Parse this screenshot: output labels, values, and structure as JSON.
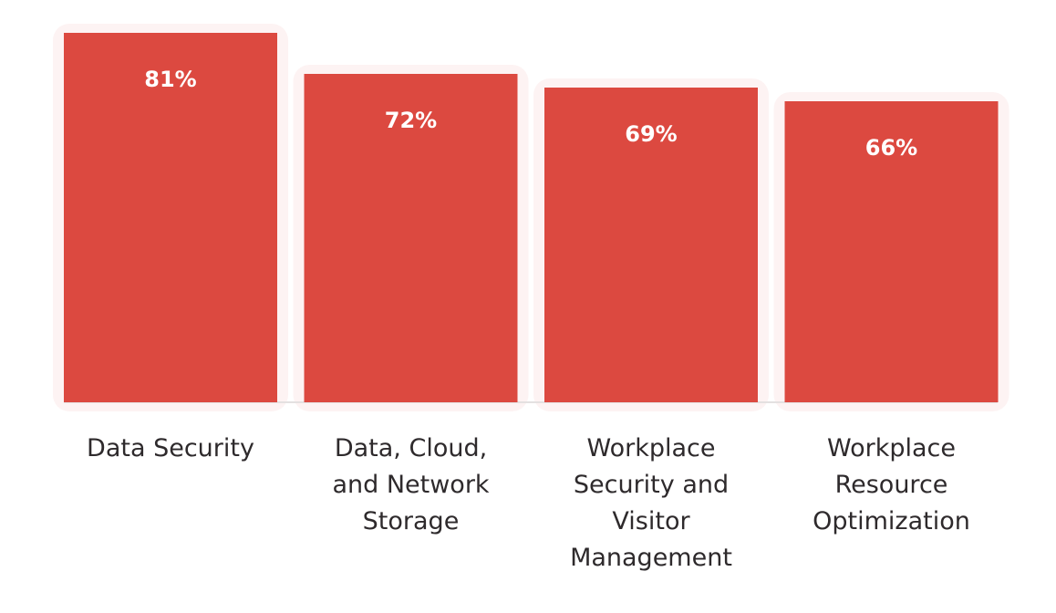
{
  "colors": {
    "bar": "#dc4940",
    "value_text": "#ffffff",
    "category_text": "#2e2a2c",
    "background": "#ffffff"
  },
  "chart_data": {
    "type": "bar",
    "categories": [
      "Data Security",
      "Data, Cloud, and Network Storage",
      "Workplace Security and Visitor Management",
      "Workplace Resource Optimization"
    ],
    "category_lines": [
      [
        "Data Security"
      ],
      [
        "Data, Cloud,",
        "and Network",
        "Storage"
      ],
      [
        "Workplace",
        "Security and",
        "Visitor",
        "Management"
      ],
      [
        "Workplace",
        "Resource",
        "Optimization"
      ]
    ],
    "values": [
      81,
      72,
      69,
      66
    ],
    "value_labels": [
      "81%",
      "72%",
      "69%",
      "66%"
    ],
    "ylim": [
      0,
      81
    ],
    "grid": false,
    "legend": "none"
  }
}
